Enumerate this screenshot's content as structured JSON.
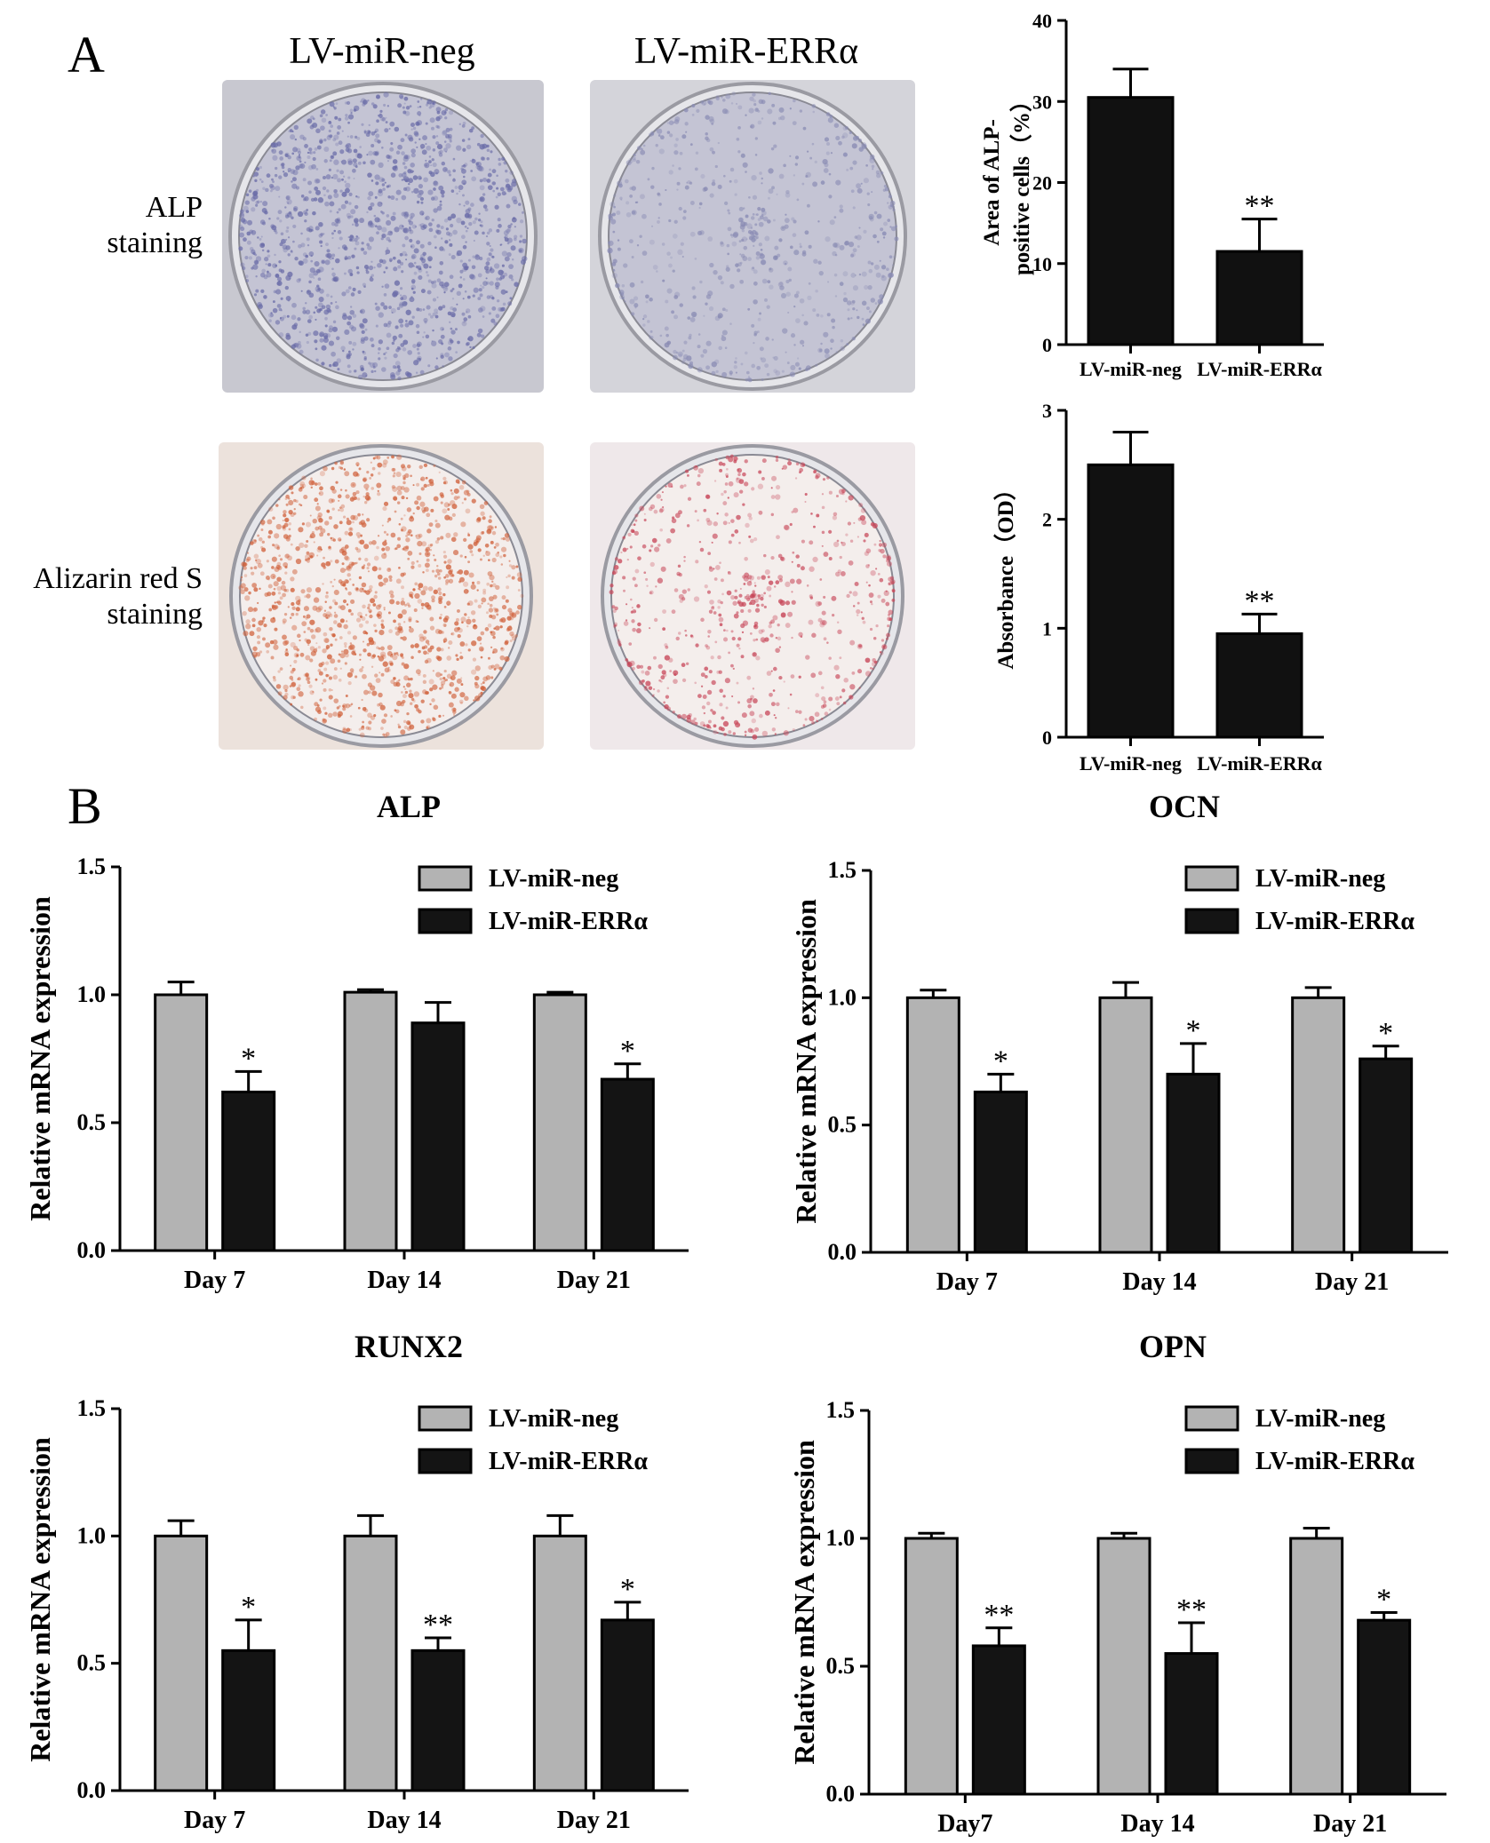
{
  "panel_a": {
    "letter": "A",
    "col_headers": [
      "LV-miR-neg",
      "LV-miR-ERRα"
    ],
    "row_headers": [
      {
        "line1": "ALP",
        "line2": "staining"
      },
      {
        "line1": "Alizarin red S",
        "line2": "staining"
      }
    ],
    "dishes": [
      {
        "stain": "ALP",
        "group": "LV-miR-neg",
        "color": "#6a6ca8",
        "bg": "#c8c8d0"
      },
      {
        "stain": "ALP",
        "group": "LV-miR-ERRα",
        "color": "#8a8cb4",
        "bg": "#d4d4da"
      },
      {
        "stain": "Alizarin red S",
        "group": "LV-miR-neg",
        "color": "#d0603a",
        "bg": "#ece2dc"
      },
      {
        "stain": "Alizarin red S",
        "group": "LV-miR-ERRα",
        "color": "#c8485a",
        "bg": "#efe8ea"
      }
    ]
  },
  "panel_b": {
    "letter": "B"
  },
  "colors": {
    "neg": "#b3b3b3",
    "errα": "#141414"
  },
  "chart_data": [
    {
      "id": "alp-area",
      "type": "bar",
      "title": "",
      "ylabel_line1": "Area of ALP-",
      "ylabel_line2": "positive cells（%）",
      "categories": [
        "LV-miR-neg",
        "LV-miR-ERRα"
      ],
      "values": [
        30.5,
        11.5
      ],
      "errors": [
        3.5,
        4.0
      ],
      "significance": [
        "",
        "**"
      ],
      "ylim": [
        0,
        40
      ],
      "yticks": [
        "0",
        "10",
        "20",
        "30",
        "40"
      ]
    },
    {
      "id": "alizarin-absorbance",
      "type": "bar",
      "title": "",
      "ylabel_line1": "Absorbance（OD）",
      "ylabel_line2": "",
      "categories": [
        "LV-miR-neg",
        "LV-miR-ERRα"
      ],
      "values": [
        2.5,
        0.95
      ],
      "errors": [
        0.3,
        0.18
      ],
      "significance": [
        "",
        "**"
      ],
      "ylim": [
        0,
        3
      ],
      "yticks": [
        "0",
        "1",
        "2",
        "3"
      ]
    },
    {
      "id": "alp-mrna",
      "type": "bar",
      "title": "ALP",
      "ylabel": "Relative mRNA expression",
      "categories": [
        "Day 7",
        "Day 14",
        "Day 21"
      ],
      "series": [
        {
          "name": "LV-miR-neg",
          "values": [
            1.0,
            1.01,
            1.0
          ],
          "errors": [
            0.05,
            0.01,
            0.01
          ]
        },
        {
          "name": "LV-miR-ERRα",
          "values": [
            0.62,
            0.89,
            0.67
          ],
          "errors": [
            0.08,
            0.08,
            0.06
          ]
        }
      ],
      "significance": [
        "*",
        "",
        "*"
      ],
      "ylim": [
        0,
        1.5
      ],
      "yticks": [
        "0.0",
        "0.5",
        "1.0",
        "1.5"
      ]
    },
    {
      "id": "ocn-mrna",
      "type": "bar",
      "title": "OCN",
      "ylabel": "Relative mRNA expression",
      "categories": [
        "Day 7",
        "Day 14",
        "Day 21"
      ],
      "series": [
        {
          "name": "LV-miR-neg",
          "values": [
            1.0,
            1.0,
            1.0
          ],
          "errors": [
            0.03,
            0.06,
            0.04
          ]
        },
        {
          "name": "LV-miR-ERRα",
          "values": [
            0.63,
            0.7,
            0.76
          ],
          "errors": [
            0.07,
            0.12,
            0.05
          ]
        }
      ],
      "significance": [
        "*",
        "*",
        "*"
      ],
      "ylim": [
        0,
        1.5
      ],
      "yticks": [
        "0.0",
        "0.5",
        "1.0",
        "1.5"
      ]
    },
    {
      "id": "runx2-mrna",
      "type": "bar",
      "title": "RUNX2",
      "ylabel": "Relative mRNA expression",
      "categories": [
        "Day 7",
        "Day 14",
        "Day 21"
      ],
      "series": [
        {
          "name": "LV-miR-neg",
          "values": [
            1.0,
            1.0,
            1.0
          ],
          "errors": [
            0.06,
            0.08,
            0.08
          ]
        },
        {
          "name": "LV-miR-ERRα",
          "values": [
            0.55,
            0.55,
            0.67
          ],
          "errors": [
            0.12,
            0.05,
            0.07
          ]
        }
      ],
      "significance": [
        "*",
        "**",
        "*"
      ],
      "ylim": [
        0,
        1.5
      ],
      "yticks": [
        "0.0",
        "0.5",
        "1.0",
        "1.5"
      ]
    },
    {
      "id": "opn-mrna",
      "type": "bar",
      "title": "OPN",
      "ylabel": "Relative mRNA expression",
      "categories": [
        "Day7",
        "Day 14",
        "Day 21"
      ],
      "series": [
        {
          "name": "LV-miR-neg",
          "values": [
            1.0,
            1.0,
            1.0
          ],
          "errors": [
            0.02,
            0.02,
            0.04
          ]
        },
        {
          "name": "LV-miR-ERRα",
          "values": [
            0.58,
            0.55,
            0.68
          ],
          "errors": [
            0.07,
            0.12,
            0.03
          ]
        }
      ],
      "significance": [
        "**",
        "**",
        "*"
      ],
      "ylim": [
        0,
        1.5
      ],
      "yticks": [
        "0.0",
        "0.5",
        "1.0",
        "1.5"
      ]
    }
  ]
}
